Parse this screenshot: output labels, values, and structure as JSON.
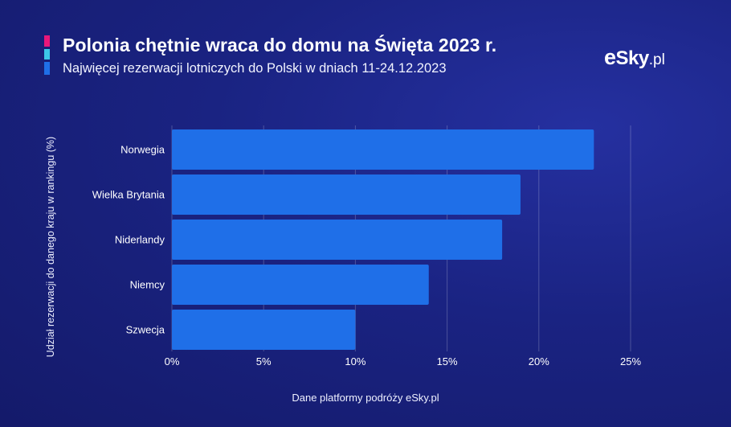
{
  "header": {
    "title": "Polonia chętnie wraca do domu na Święta 2023 r.",
    "subtitle": "Najwięcej rezerwacji lotniczych do Polski w dniach 11-24.12.2023"
  },
  "logo": {
    "e": "e",
    "main": "Sky",
    "suffix": ".pl"
  },
  "colors": {
    "bar": "#1f6fe8",
    "background": "#1a2382",
    "grid": "#ffffff",
    "accent_pink": "#e8177a",
    "accent_cyan": "#3cc8e8",
    "accent_blue": "#1f6fe8"
  },
  "footer": {
    "source": "Dane platformy podróży eSky.pl"
  },
  "chart_data": {
    "type": "bar",
    "orientation": "horizontal",
    "categories": [
      "Norwegia",
      "Wielka Brytania",
      "Niderlandy",
      "Niemcy",
      "Szwecja"
    ],
    "values": [
      23,
      19,
      18,
      14,
      10
    ],
    "xlabel": "",
    "ylabel": "Udział rezerwacji do danego kraju w rankingu (%)",
    "xlim": [
      0,
      25
    ],
    "xticks": [
      0,
      5,
      10,
      15,
      20,
      25
    ],
    "xtick_labels": [
      "0%",
      "5%",
      "10%",
      "15%",
      "20%",
      "25%"
    ],
    "grid": "vertical"
  }
}
